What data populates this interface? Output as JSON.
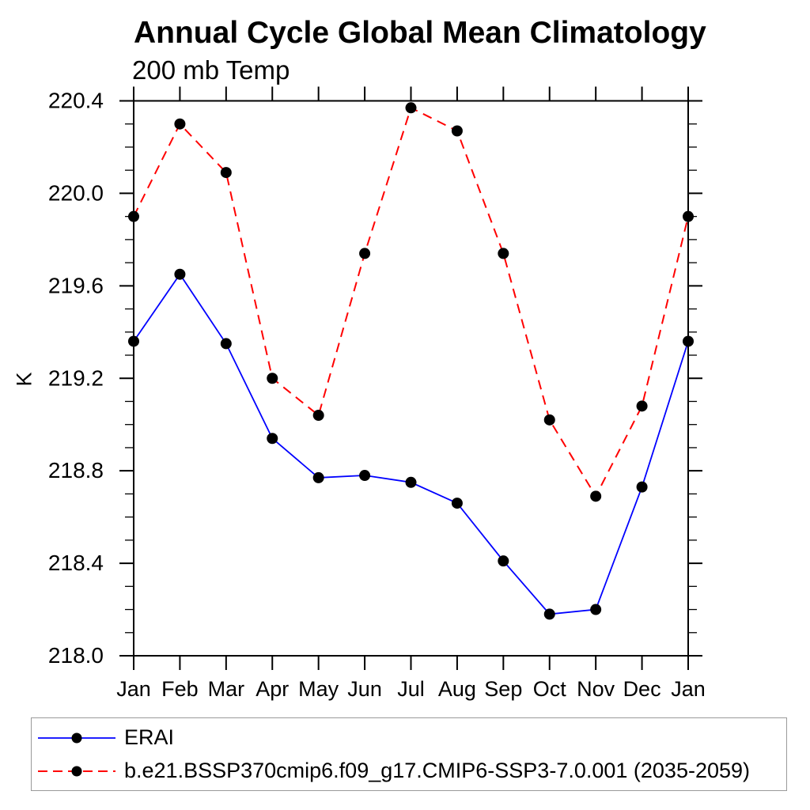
{
  "chart_data": {
    "type": "line",
    "title": "Annual Cycle Global Mean Climatology",
    "subtitle": "200 mb Temp",
    "ylabel": "K",
    "categories": [
      "Jan",
      "Feb",
      "Mar",
      "Apr",
      "May",
      "Jun",
      "Jul",
      "Aug",
      "Sep",
      "Oct",
      "Nov",
      "Dec",
      "Jan"
    ],
    "ylim": [
      218.0,
      220.4
    ],
    "ytick_major_step": 0.4,
    "ytick_minor_step": 0.1,
    "ytick_labels": [
      "218.0",
      "218.4",
      "218.8",
      "219.2",
      "219.6",
      "220.0",
      "220.4"
    ],
    "grid": false,
    "legend_position": "bottom-left-box",
    "axis_color": "#000000",
    "marker_radius": 7,
    "series": [
      {
        "name": "ERAI",
        "color": "#0000ff",
        "style": "solid",
        "marker": "circle",
        "marker_color": "#000000",
        "values": [
          219.36,
          219.65,
          219.35,
          218.94,
          218.77,
          218.78,
          218.75,
          218.66,
          218.41,
          218.18,
          218.2,
          218.73,
          219.36
        ]
      },
      {
        "name": "b.e21.BSSP370cmip6.f09_g17.CMIP6-SSP3-7.0.001 (2035-2059)",
        "color": "#ff0000",
        "style": "dashed",
        "marker": "circle",
        "marker_color": "#000000",
        "values": [
          219.9,
          220.3,
          220.09,
          219.2,
          219.04,
          219.74,
          220.37,
          220.27,
          219.74,
          219.02,
          218.69,
          219.08,
          219.9
        ]
      }
    ]
  }
}
